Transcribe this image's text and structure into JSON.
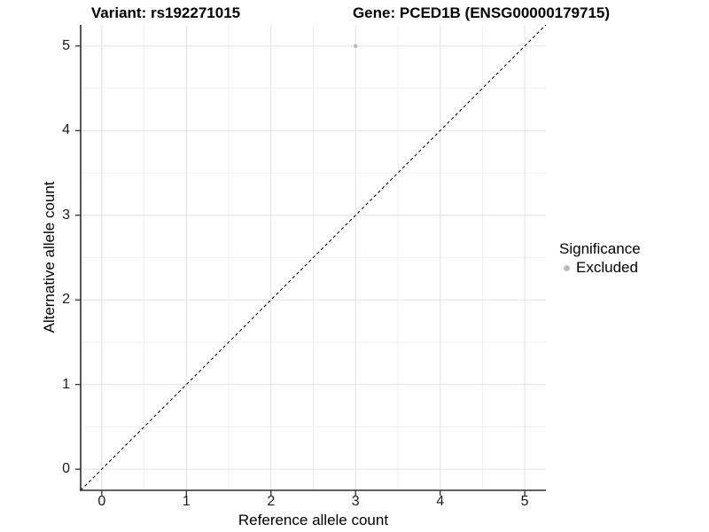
{
  "chart_data": {
    "type": "scatter",
    "titles": [
      "Variant: rs192271015",
      "Gene: PCED1B (ENSG00000179715)"
    ],
    "xlabel": "Reference allele count",
    "ylabel": "Alternative allele count",
    "xlim": [
      -0.25,
      5.25
    ],
    "ylim": [
      -0.25,
      5.25
    ],
    "x_ticks": [
      0,
      1,
      2,
      3,
      4,
      5
    ],
    "y_ticks": [
      0,
      1,
      2,
      3,
      4,
      5
    ],
    "grid": {
      "major": [
        0,
        1,
        2,
        3,
        4,
        5
      ],
      "minor": [
        0.5,
        1.5,
        2.5,
        3.5,
        4.5
      ],
      "major_color": "#e4e4e4",
      "minor_color": "#f1f1f1"
    },
    "series": [
      {
        "name": "Excluded",
        "color": "#bdbdbd",
        "points": [
          {
            "x": 3,
            "y": 5
          }
        ]
      }
    ],
    "reference_line": {
      "type": "identity y=x",
      "from": [
        -0.25,
        -0.25
      ],
      "to": [
        5.25,
        5.25
      ],
      "style": "dashed",
      "color": "#000000"
    },
    "legend": {
      "title": "Significance",
      "position": "right",
      "items": [
        {
          "label": "Excluded",
          "color": "#bdbdbd",
          "marker": "circle"
        }
      ]
    },
    "axis": {
      "color": "#2e2e2e",
      "tick_color": "#2e2e2e",
      "tick_length": 6,
      "panel_background": "#ffffff"
    }
  }
}
